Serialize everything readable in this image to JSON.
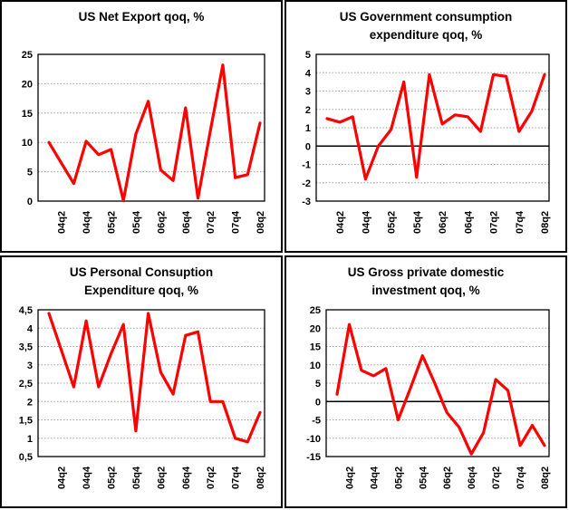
{
  "page": {
    "background": "#ffffff",
    "border_color": "#000000",
    "grid_color": "#a0a0a0",
    "axis_color": "#000000",
    "line_color": "#ff0000"
  },
  "chart_data": [
    {
      "type": "line",
      "title": "US Net Export qoq, %",
      "x": [
        "04q1",
        "04q2",
        "04q3",
        "04q4",
        "05q1",
        "05q2",
        "05q3",
        "05q4",
        "06q1",
        "06q2",
        "06q3",
        "06q4",
        "07q1",
        "07q2",
        "07q3",
        "07q4",
        "08q1",
        "08q2"
      ],
      "x_tick_labels": [
        "04q2",
        "04q4",
        "05q2",
        "05q4",
        "06q2",
        "06q4",
        "07q2",
        "07q4",
        "08q2"
      ],
      "values": [
        10,
        6.5,
        3,
        10.2,
        7.9,
        8.8,
        0.1,
        11.4,
        17,
        5.3,
        3.5,
        15.9,
        0.5,
        12,
        23.2,
        4,
        4.5,
        13.3
      ],
      "ylim": [
        0,
        25
      ],
      "ytick_values": [
        0,
        5,
        10,
        15,
        20,
        25
      ],
      "ytick_labels": [
        "0",
        "5",
        "10",
        "15",
        "20",
        "25"
      ],
      "xlabel": "",
      "ylabel": "",
      "grid": true,
      "legend": false,
      "line_color": "#ff0000"
    },
    {
      "type": "line",
      "title": "US Government consumption\nexpenditure qoq, %",
      "x": [
        "04q1",
        "04q2",
        "04q3",
        "04q4",
        "05q1",
        "05q2",
        "05q3",
        "05q4",
        "06q1",
        "06q2",
        "06q3",
        "06q4",
        "07q1",
        "07q2",
        "07q3",
        "07q4",
        "08q1",
        "08q2"
      ],
      "x_tick_labels": [
        "04q2",
        "04q4",
        "05q2",
        "05q4",
        "06q2",
        "06q4",
        "07q2",
        "07q4",
        "08q2"
      ],
      "values": [
        1.5,
        1.3,
        1.6,
        -1.8,
        0,
        0.9,
        3.5,
        -1.7,
        3.9,
        1.2,
        1.7,
        1.6,
        0.8,
        3.9,
        3.8,
        0.8,
        1.9,
        3.9
      ],
      "ylim": [
        -3,
        5
      ],
      "ytick_values": [
        -3,
        -2,
        -1,
        0,
        1,
        2,
        3,
        4,
        5
      ],
      "ytick_labels": [
        "-3",
        "-2",
        "-1",
        "0",
        "1",
        "2",
        "3",
        "4",
        "5"
      ],
      "xlabel": "",
      "ylabel": "",
      "grid": true,
      "legend": false,
      "line_color": "#ff0000"
    },
    {
      "type": "line",
      "title": "US Personal Consuption\nExpenditure qoq, %",
      "x": [
        "04q1",
        "04q2",
        "04q3",
        "04q4",
        "05q1",
        "05q2",
        "05q3",
        "05q4",
        "06q1",
        "06q2",
        "06q3",
        "06q4",
        "07q1",
        "07q2",
        "07q3",
        "07q4",
        "08q1",
        "08q2"
      ],
      "x_tick_labels": [
        "04q2",
        "04q4",
        "05q2",
        "05q4",
        "06q2",
        "06q4",
        "07q2",
        "07q4",
        "08q2"
      ],
      "values": [
        4.4,
        3.4,
        2.4,
        4.2,
        2.4,
        3.3,
        4.1,
        1.2,
        4.4,
        2.8,
        2.2,
        3.8,
        3.9,
        2.0,
        2.0,
        1.0,
        0.9,
        1.7
      ],
      "ylim": [
        0.5,
        4.5
      ],
      "ytick_values": [
        0.5,
        1,
        1.5,
        2,
        2.5,
        3,
        3.5,
        4,
        4.5
      ],
      "ytick_labels": [
        "0,5",
        "1",
        "1,5",
        "2",
        "2,5",
        "3",
        "3,5",
        "4",
        "4,5"
      ],
      "xlabel": "",
      "ylabel": "",
      "grid": true,
      "legend": false,
      "line_color": "#ff0000"
    },
    {
      "type": "line",
      "title": "US Gross private domestic\ninvestment qoq, %",
      "x": [
        "04q1",
        "04q2",
        "04q3",
        "04q4",
        "05q1",
        "05q2",
        "05q3",
        "05q4",
        "06q1",
        "06q2",
        "06q3",
        "06q4",
        "07q1",
        "07q2",
        "07q3",
        "07q4",
        "08q1",
        "08q2"
      ],
      "x_tick_labels": [
        "04q2",
        "04q4",
        "05q2",
        "05q4",
        "06q2",
        "06q4",
        "07q2",
        "07q4",
        "08q2"
      ],
      "values": [
        2,
        21,
        8.5,
        7,
        9,
        -5,
        3.5,
        12.5,
        5,
        -3,
        -7,
        -14.3,
        -8.5,
        6,
        3,
        -12,
        -6.5,
        -12
      ],
      "ylim": [
        -15,
        25
      ],
      "ytick_values": [
        -15,
        -10,
        -5,
        0,
        5,
        10,
        15,
        20,
        25
      ],
      "ytick_labels": [
        "-15",
        "-10",
        "-5",
        "0",
        "5",
        "10",
        "15",
        "20",
        "25"
      ],
      "xlabel": "",
      "ylabel": "",
      "grid": true,
      "legend": false,
      "line_color": "#ff0000"
    }
  ]
}
